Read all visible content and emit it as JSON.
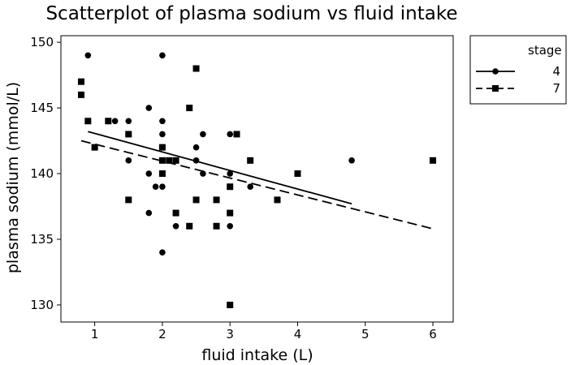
{
  "chart_data": {
    "type": "scatter",
    "title": "Scatterplot of plasma sodium vs fluid intake",
    "xlabel": "fluid intake (L)",
    "ylabel": "plasma sodium (mmol/L)",
    "xlim": [
      0.5,
      6.3
    ],
    "ylim": [
      128.7,
      150.5
    ],
    "xticks": [
      1,
      2,
      3,
      4,
      5,
      6
    ],
    "yticks": [
      130,
      135,
      140,
      145,
      150
    ],
    "grid": false,
    "legend": {
      "title": "stage",
      "position": "right"
    },
    "series": [
      {
        "name": "4",
        "marker": "circle",
        "line_style": "solid",
        "points": [
          [
            0.9,
            149
          ],
          [
            1.2,
            144
          ],
          [
            1.3,
            144
          ],
          [
            1.5,
            144
          ],
          [
            1.5,
            141
          ],
          [
            1.8,
            145
          ],
          [
            1.8,
            140
          ],
          [
            1.8,
            137
          ],
          [
            1.9,
            139
          ],
          [
            2.0,
            149
          ],
          [
            2.0,
            144
          ],
          [
            2.0,
            143
          ],
          [
            2.0,
            142
          ],
          [
            2.0,
            139
          ],
          [
            2.0,
            134
          ],
          [
            2.1,
            141
          ],
          [
            2.2,
            141
          ],
          [
            2.2,
            136
          ],
          [
            2.5,
            142
          ],
          [
            2.5,
            141
          ],
          [
            2.6,
            143
          ],
          [
            2.6,
            140
          ],
          [
            3.0,
            143
          ],
          [
            3.0,
            140
          ],
          [
            3.0,
            136
          ],
          [
            3.3,
            139
          ],
          [
            4.8,
            141
          ]
        ],
        "fit_line": [
          [
            0.9,
            143.2
          ],
          [
            4.8,
            137.7
          ]
        ]
      },
      {
        "name": "7",
        "marker": "square",
        "line_style": "dashed",
        "points": [
          [
            0.8,
            147
          ],
          [
            0.8,
            146
          ],
          [
            0.9,
            144
          ],
          [
            1.0,
            142
          ],
          [
            1.2,
            144
          ],
          [
            1.5,
            143
          ],
          [
            1.5,
            138
          ],
          [
            2.0,
            142
          ],
          [
            2.0,
            141
          ],
          [
            2.0,
            140
          ],
          [
            2.1,
            141
          ],
          [
            2.2,
            141
          ],
          [
            2.2,
            137
          ],
          [
            2.4,
            145
          ],
          [
            2.4,
            136
          ],
          [
            2.5,
            148
          ],
          [
            2.5,
            138
          ],
          [
            2.8,
            138
          ],
          [
            2.8,
            136
          ],
          [
            3.0,
            139
          ],
          [
            3.0,
            137
          ],
          [
            3.0,
            130
          ],
          [
            3.1,
            143
          ],
          [
            3.3,
            141
          ],
          [
            3.7,
            138
          ],
          [
            4.0,
            140
          ],
          [
            6.0,
            141
          ]
        ],
        "fit_line": [
          [
            0.8,
            142.5
          ],
          [
            6.0,
            135.8
          ]
        ]
      }
    ]
  }
}
